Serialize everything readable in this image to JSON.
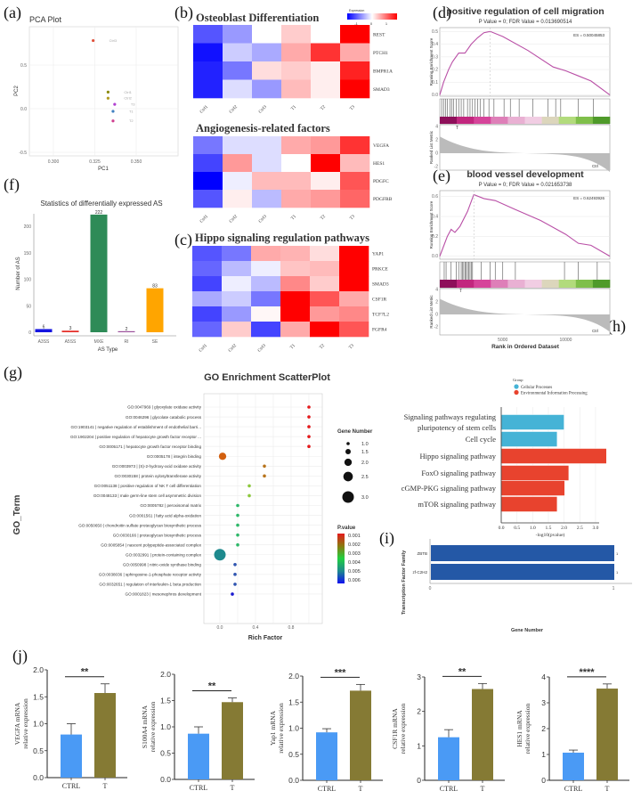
{
  "panel_labels": {
    "a": "(a)",
    "b": "(b)",
    "c": "(c)",
    "d": "(d)",
    "e": "(e)",
    "f": "(f)",
    "g": "(g)",
    "h": "(h)",
    "i": "(i)",
    "j": "(j)"
  },
  "chart_data": {
    "pca": {
      "type": "scatter",
      "title": "PCA Plot",
      "xlabel": "PC1",
      "ylabel": "PC2",
      "xlim": [
        0.285,
        0.365
      ],
      "ylim": [
        -0.55,
        0.95
      ],
      "xticks": [
        "0.300",
        "0.325",
        "0.350"
      ],
      "xtick_values": [
        0.3,
        0.325,
        0.35
      ],
      "yticks": [
        "-0.5",
        "0.0",
        "0.5"
      ],
      "ytick_values": [
        -0.5,
        0,
        0.5
      ],
      "points": [
        {
          "label": "Ctrl3",
          "x": 0.324,
          "y": 0.78,
          "color": "#e0503a"
        },
        {
          "label": "Ctrl1",
          "x": 0.333,
          "y": 0.19,
          "color": "#8a8a10"
        },
        {
          "label": "Ctrl2",
          "x": 0.333,
          "y": 0.12,
          "color": "#b09a20"
        },
        {
          "label": "T3",
          "x": 0.337,
          "y": 0.05,
          "color": "#b040d0"
        },
        {
          "label": "T1",
          "x": 0.336,
          "y": -0.03,
          "color": "#4080c0"
        },
        {
          "label": "T2",
          "x": 0.336,
          "y": -0.14,
          "color": "#d04090"
        }
      ]
    },
    "heatmap_legend": {
      "title": "Expression",
      "ticks": [
        "-1",
        "0",
        "1"
      ]
    },
    "heatmaps": [
      {
        "type": "heatmap",
        "title": "Osteoblast Differentiation",
        "columns": [
          "Ctrl1",
          "Ctrl2",
          "Ctrl3",
          "T1",
          "T2",
          "T3"
        ],
        "rows": [
          "REST",
          "PTCH1",
          "BMPR1A",
          "SMAD3"
        ],
        "values": [
          [
            -1.0,
            -0.6,
            0.0,
            0.3,
            0.0,
            1.5
          ],
          [
            -1.4,
            -0.3,
            -0.5,
            0.5,
            1.2,
            0.5
          ],
          [
            -1.3,
            -0.8,
            0.2,
            0.3,
            0.1,
            1.3
          ],
          [
            -1.3,
            -0.2,
            -0.6,
            0.4,
            0.1,
            1.5
          ]
        ]
      },
      {
        "type": "heatmap",
        "title": "Angiogenesis-related factors",
        "columns": [
          "Ctrl1",
          "Ctrl2",
          "Ctrl3",
          "T1",
          "T2",
          "T3"
        ],
        "rows": [
          "VEGFA",
          "HES1",
          "PDGFC",
          "PDGFRB"
        ],
        "values": [
          [
            -0.8,
            -0.2,
            -0.2,
            0.5,
            0.6,
            1.2
          ],
          [
            -1.1,
            0.6,
            -0.2,
            0.0,
            1.6,
            0.4
          ],
          [
            -1.9,
            -0.1,
            0.4,
            0.4,
            0.1,
            1.0
          ],
          [
            -1.0,
            0.1,
            -0.4,
            0.5,
            0.6,
            0.9
          ]
        ]
      },
      {
        "type": "heatmap",
        "title": "Hippo signaling regulation pathways",
        "columns": [
          "Ctrl1",
          "Ctrl2",
          "Ctrl3",
          "T1",
          "T2",
          "T3"
        ],
        "rows": [
          "YAP1",
          "PRKCE",
          "SMAD3",
          "CSF1R",
          "TCF7L2",
          "FGFR4"
        ],
        "values": [
          [
            -1.0,
            -0.8,
            0.5,
            0.45,
            0.2,
            1.6
          ],
          [
            -0.9,
            -0.4,
            -0.1,
            0.35,
            0.4,
            1.6
          ],
          [
            -1.1,
            -0.1,
            -0.4,
            0.7,
            0.3,
            1.6
          ],
          [
            -0.5,
            -0.3,
            -0.8,
            1.6,
            1.0,
            0.5
          ],
          [
            -1.1,
            -0.6,
            0.05,
            1.6,
            0.6,
            0.7
          ],
          [
            -0.9,
            0.3,
            -1.1,
            0.5,
            1.6,
            1.0
          ]
        ]
      }
    ],
    "gsea": [
      {
        "type": "line",
        "title": "positive regulation of cell migration",
        "subtitle": "P Value = 0; FDR Value = 0.013690514",
        "es_label": "ES = 0.50045853",
        "ylabel": "Running Enrichment Score",
        "metric_label": "Ranked List Metric",
        "ylim": [
          -0.01,
          0.53
        ],
        "yticks": [
          0,
          0.1,
          0.2,
          0.3,
          0.4,
          0.5
        ],
        "ytick_labels": [
          "0.0",
          "0.1",
          "0.2",
          "0.3",
          "0.4",
          "0.5"
        ],
        "metric_ticks": [
          "4",
          "2",
          "0",
          "-2"
        ],
        "t_label": "T",
        "ctrl_label": "Ctrl",
        "curve": [
          [
            0,
            0
          ],
          [
            300,
            0.1
          ],
          [
            700,
            0.2
          ],
          [
            1000,
            0.26
          ],
          [
            1500,
            0.33
          ],
          [
            2000,
            0.33
          ],
          [
            2500,
            0.4
          ],
          [
            3000,
            0.45
          ],
          [
            3500,
            0.49
          ],
          [
            4000,
            0.5
          ],
          [
            5000,
            0.46
          ],
          [
            7000,
            0.35
          ],
          [
            9000,
            0.22
          ],
          [
            10000,
            0.19
          ],
          [
            11000,
            0.15
          ],
          [
            12000,
            0.11
          ],
          [
            13500,
            0
          ]
        ],
        "hits": [
          150,
          300,
          450,
          600,
          800,
          950,
          1100,
          1300,
          1500,
          1700,
          1900,
          2200,
          2400,
          2600,
          2800,
          3000,
          3200,
          3500,
          3900,
          4300,
          5100,
          5600,
          6300,
          7400,
          8600,
          9200,
          9600,
          11000,
          12200
        ]
      },
      {
        "type": "line",
        "title": "blood vessel development",
        "subtitle": "P Value = 0; FDR Value = 0.021653738",
        "es_label": "ES = 0.62493926",
        "ylabel": "Running Enrichment Score",
        "metric_label": "Ranked List Metric",
        "ylim": [
          -0.03,
          0.66
        ],
        "yticks": [
          0,
          0.2,
          0.4,
          0.6
        ],
        "ytick_labels": [
          "0.0",
          "0.2",
          "0.4",
          "0.6"
        ],
        "metric_ticks": [
          "4",
          "2",
          "0",
          "-2"
        ],
        "t_label": "T",
        "ctrl_label": "Ctrl",
        "xticks": [
          5000,
          10000
        ],
        "xtick_labels": [
          "5000",
          "10000"
        ],
        "xlabel": "Rank in Ordered Dataset",
        "curve": [
          [
            0,
            0
          ],
          [
            300,
            0.1
          ],
          [
            600,
            0.2
          ],
          [
            900,
            0.27
          ],
          [
            1200,
            0.24
          ],
          [
            1600,
            0.3
          ],
          [
            2200,
            0.45
          ],
          [
            2700,
            0.62
          ],
          [
            3500,
            0.58
          ],
          [
            4400,
            0.56
          ],
          [
            6000,
            0.47
          ],
          [
            8000,
            0.36
          ],
          [
            10000,
            0.22
          ],
          [
            11000,
            0.13
          ],
          [
            12000,
            0.11
          ],
          [
            13500,
            0
          ]
        ],
        "hits": [
          350,
          500,
          900,
          1300,
          1500,
          1700,
          1800,
          1900,
          2000,
          2100,
          2200,
          2300,
          2400,
          2500,
          2600,
          3300,
          4000,
          4400,
          5000,
          6000,
          9900,
          11000,
          12500
        ]
      }
    ],
    "as_stats": {
      "type": "bar",
      "title": "Statistics of differentially expressed AS",
      "xlabel": "AS Type",
      "ylabel": "Number of AS",
      "categories": [
        "A3SS",
        "A5SS",
        "MXE",
        "RI",
        "SE"
      ],
      "values": [
        6,
        3,
        222,
        2,
        83
      ],
      "value_labels": [
        "6",
        "3",
        "222",
        "2",
        "83"
      ],
      "colors": [
        "#1515e0",
        "#e5302a",
        "#2e8b57",
        "#9b4f9b",
        "#ffa500"
      ],
      "ylim": [
        0,
        235
      ],
      "yticks": [
        0,
        50,
        100,
        150,
        200
      ],
      "ytick_labels": [
        "0",
        "50",
        "100",
        "150",
        "200"
      ]
    },
    "go_scatter": {
      "type": "scatter",
      "title": "GO Enrichment ScatterPlot",
      "xlabel": "Rich Factor",
      "ylabel": "GO_Term",
      "xticks": [
        0,
        0.4,
        0.8
      ],
      "xtick_labels": [
        "0.0",
        "0.4",
        "0.8"
      ],
      "size_legend_title": "Gene Number",
      "size_legend": [
        "1.0",
        "1.5",
        "2.0",
        "2.5",
        "3.0"
      ],
      "size_values": [
        1,
        1.5,
        2,
        2.5,
        3
      ],
      "color_legend_title": "P.value",
      "color_legend": [
        "0.001",
        "0.002",
        "0.003",
        "0.004",
        "0.005",
        "0.006"
      ],
      "terms": [
        {
          "term": "GO:0047969 | glyoxylate oxidase activity",
          "rich": 1.0,
          "genes": 1,
          "p": 0.001,
          "color": "#e41a1c"
        },
        {
          "term": "GO:0046296 | glycolate catabolic process",
          "rich": 1.0,
          "genes": 1,
          "p": 0.001,
          "color": "#e41a1c"
        },
        {
          "term": "GO:1903141 | negative regulation of establishment of endothelial barri...",
          "rich": 1.0,
          "genes": 1,
          "p": 0.001,
          "color": "#e41a1c"
        },
        {
          "term": "GO:1902204 | positive regulation of hepatocyte growth factor receptor ...",
          "rich": 1.0,
          "genes": 1,
          "p": 0.001,
          "color": "#e41a1c"
        },
        {
          "term": "GO:0005171 | hepatocyte growth factor receptor binding",
          "rich": 1.0,
          "genes": 1,
          "p": 0.001,
          "color": "#e41a1c"
        },
        {
          "term": "GO:0005178 | integrin binding",
          "rich": 0.03,
          "genes": 2,
          "p": 0.0017,
          "color": "#d2600f"
        },
        {
          "term": "GO:0003973 | (S)-2-hydroxy-acid oxidase activity",
          "rich": 0.5,
          "genes": 1,
          "p": 0.0022,
          "color": "#b8741c"
        },
        {
          "term": "GO:0030158 | protein xylosyltransferase activity",
          "rich": 0.5,
          "genes": 1,
          "p": 0.0022,
          "color": "#b8741c"
        },
        {
          "term": "GO:0051138 | positive regulation of NK T cell differentiation",
          "rich": 0.33,
          "genes": 1,
          "p": 0.003,
          "color": "#8cc83c"
        },
        {
          "term": "GO:0048133 | male germ-line stem cell asymmetric division",
          "rich": 0.33,
          "genes": 1,
          "p": 0.003,
          "color": "#8cc83c"
        },
        {
          "term": "GO:0005782 | peroxisomal matrix",
          "rich": 0.2,
          "genes": 1,
          "p": 0.0038,
          "color": "#2eb86a"
        },
        {
          "term": "GO:0001561 | fatty acid alpha-oxidation",
          "rich": 0.2,
          "genes": 1,
          "p": 0.0038,
          "color": "#2eb86a"
        },
        {
          "term": "GO:0050650 | chondroitin sulfate proteoglycan biosynthetic process",
          "rich": 0.2,
          "genes": 1,
          "p": 0.0038,
          "color": "#2eb86a"
        },
        {
          "term": "GO:0030166 | proteoglycan biosynthetic process",
          "rich": 0.2,
          "genes": 1,
          "p": 0.0038,
          "color": "#2eb86a"
        },
        {
          "term": "GO:0005854 | nascent polypeptide-associated complex",
          "rich": 0.2,
          "genes": 1,
          "p": 0.0038,
          "color": "#2eb86a"
        },
        {
          "term": "GO:0032991 | protein-containing complex",
          "rich": 0.0,
          "genes": 3,
          "p": 0.0048,
          "color": "#1e8a8e"
        },
        {
          "term": "GO:0050998 | nitric-oxide synthase binding",
          "rich": 0.17,
          "genes": 1,
          "p": 0.0055,
          "color": "#2f55b0"
        },
        {
          "term": "GO:0038036 | sphingosine-1-phosphate receptor activity",
          "rich": 0.17,
          "genes": 1,
          "p": 0.0055,
          "color": "#2f55b0"
        },
        {
          "term": "GO:0032651 | regulation of interleukin-1 beta production",
          "rich": 0.17,
          "genes": 1,
          "p": 0.0055,
          "color": "#2f55b0"
        },
        {
          "term": "GO:0001823 | mesonephros development",
          "rich": 0.14,
          "genes": 1,
          "p": 0.0062,
          "color": "#1a1ad0"
        }
      ]
    },
    "kegg": {
      "type": "bar",
      "xlabel": "-log10(pvalue)",
      "legend_title": "Group",
      "groups": [
        {
          "name": "Cellular Processes",
          "color": "#45b3d6"
        },
        {
          "name": "Environmental Information Processing",
          "color": "#e8432e"
        }
      ],
      "categories": [
        [
          "Signaling pathways regulating",
          "pluripotency of stem cells"
        ],
        [
          "Cell cycle"
        ],
        [
          "Hippo signaling pathway"
        ],
        [
          "FoxO signaling pathway"
        ],
        [
          "cGMP-PKG signaling pathway"
        ],
        [
          "mTOR signaling pathway"
        ]
      ],
      "values": [
        2.0,
        1.78,
        3.35,
        2.15,
        2.02,
        1.78
      ],
      "group_index": [
        0,
        0,
        1,
        1,
        1,
        1
      ],
      "xticks": [
        0,
        0.5,
        1,
        1.5,
        2,
        2.5,
        3
      ],
      "xtick_labels": [
        "0.0",
        "0.5",
        "1.0",
        "1.5",
        "2.0",
        "2.5",
        "3.0"
      ]
    },
    "tf_family": {
      "type": "bar",
      "xlabel": "Gene Number",
      "ylabel": "Transcription Factor Family",
      "categories": [
        "ZBTB",
        "zf-C2H2"
      ],
      "values": [
        1,
        1
      ],
      "value_labels": [
        "1",
        "1"
      ],
      "color": "#2458a6",
      "xtick_labels": [
        "0",
        "1"
      ]
    },
    "qpcr": [
      {
        "type": "bar",
        "ylabel": [
          "VEGFA mRNA",
          "relative expression"
        ],
        "categories": [
          "CTRL",
          "T"
        ],
        "values": [
          0.8,
          1.57
        ],
        "errors": [
          0.2,
          0.17
        ],
        "significance": "**",
        "ymax": 2,
        "yticks": [
          0,
          0.5,
          1,
          1.5,
          2
        ],
        "ytick_labels": [
          "0.0",
          "0.5",
          "1.0",
          "1.5",
          "2.0"
        ]
      },
      {
        "type": "bar",
        "ylabel": [
          "S100A4 mRNA",
          "relative expression"
        ],
        "categories": [
          "CTRL",
          "T"
        ],
        "values": [
          0.87,
          1.47
        ],
        "errors": [
          0.13,
          0.08
        ],
        "significance": "**",
        "ymax": 2,
        "yticks": [
          0,
          0.5,
          1,
          1.5,
          2
        ],
        "ytick_labels": [
          "0.0",
          "0.5",
          "1.0",
          "1.5",
          "2.0"
        ]
      },
      {
        "type": "bar",
        "ylabel": [
          "Yap1 mRNA",
          "relative expression"
        ],
        "categories": [
          "CTRL",
          "T"
        ],
        "values": [
          0.92,
          1.72
        ],
        "errors": [
          0.07,
          0.12
        ],
        "significance": "***",
        "ymax": 2,
        "yticks": [
          0,
          0.5,
          1,
          1.5,
          2
        ],
        "ytick_labels": [
          "0.0",
          "0.5",
          "1.0",
          "1.5",
          "2.0"
        ]
      },
      {
        "type": "bar",
        "ylabel": [
          "CSF1R mRNA",
          "relative expression"
        ],
        "categories": [
          "CTRL",
          "T"
        ],
        "values": [
          1.25,
          2.65
        ],
        "errors": [
          0.22,
          0.16
        ],
        "significance": "**",
        "ymax": 3,
        "yticks": [
          0,
          1,
          2,
          3
        ],
        "ytick_labels": [
          "0",
          "1",
          "2",
          "3"
        ]
      },
      {
        "type": "bar",
        "ylabel": [
          "HES1 mRNA",
          "relative expression"
        ],
        "categories": [
          "CTRL",
          "T"
        ],
        "values": [
          1.07,
          3.55
        ],
        "errors": [
          0.1,
          0.18
        ],
        "significance": "****",
        "ymax": 4,
        "yticks": [
          0,
          1,
          2,
          3,
          4
        ],
        "ytick_labels": [
          "0",
          "1",
          "2",
          "3",
          "4"
        ]
      }
    ],
    "qpcr_colors": {
      "ctrl": "#4a9af5",
      "treated": "#857a34"
    }
  }
}
